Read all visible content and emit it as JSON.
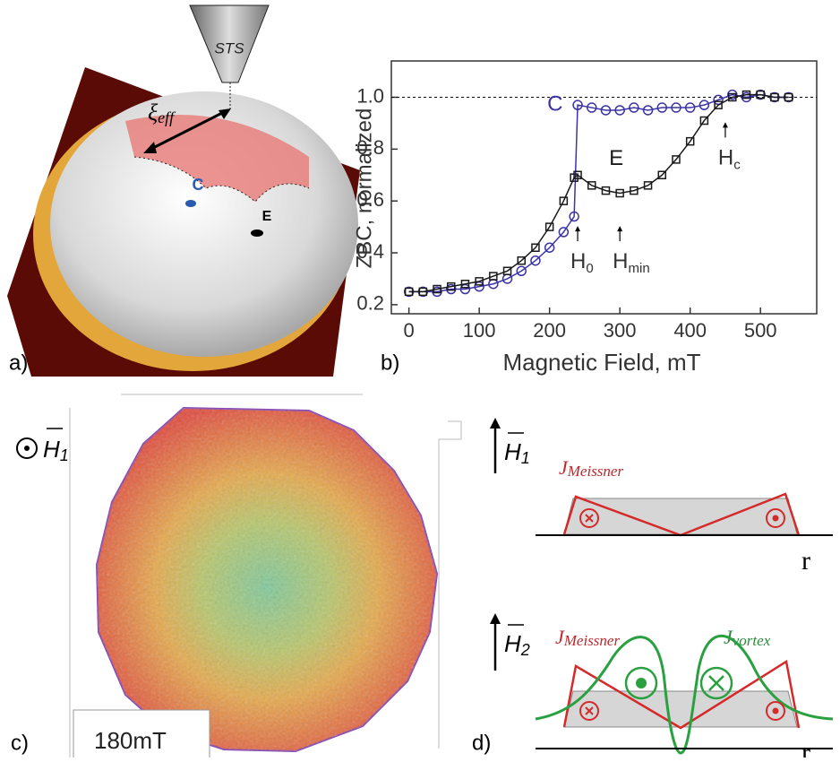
{
  "panel_a": {
    "label": "a)",
    "tip": "STS",
    "xi": "ξ",
    "xi_sub": "eff",
    "point_c": "C",
    "point_e": "E"
  },
  "chart_data": {
    "type": "scatter",
    "panel_label": "b)",
    "x_label": "Magnetic Field, mT",
    "y_label": "ZBC, normalized",
    "xlim": [
      -25,
      580
    ],
    "ylim": [
      0.165,
      1.14
    ],
    "xticks": [
      0,
      100,
      200,
      300,
      400,
      500
    ],
    "yticks": [
      0.2,
      0.4,
      0.6,
      0.8,
      {
        "value": 1,
        "label": "1.0"
      }
    ],
    "reference_line": 1,
    "series": [
      {
        "name": "C",
        "color": "#3b33a6",
        "marker": "circle",
        "x": [
          0,
          20,
          40,
          60,
          80,
          100,
          120,
          140,
          160,
          180,
          200,
          220,
          235,
          240,
          260,
          280,
          300,
          320,
          340,
          360,
          380,
          400,
          420,
          440,
          460,
          480,
          500,
          520,
          540
        ],
        "values": [
          0.25,
          0.25,
          0.25,
          0.26,
          0.26,
          0.27,
          0.28,
          0.3,
          0.33,
          0.37,
          0.42,
          0.48,
          0.54,
          0.97,
          0.96,
          0.95,
          0.95,
          0.96,
          0.95,
          0.96,
          0.96,
          0.96,
          0.97,
          0.99,
          1.01,
          1,
          1.01,
          1,
          1
        ]
      },
      {
        "name": "E",
        "color": "#1a1a1a",
        "marker": "square",
        "x": [
          0,
          20,
          40,
          60,
          80,
          100,
          120,
          140,
          160,
          180,
          200,
          220,
          235,
          240,
          260,
          280,
          300,
          320,
          340,
          360,
          380,
          400,
          420,
          440,
          460,
          480,
          500,
          520,
          540
        ],
        "values": [
          0.25,
          0.25,
          0.26,
          0.27,
          0.28,
          0.29,
          0.31,
          0.33,
          0.37,
          0.42,
          0.5,
          0.6,
          0.69,
          0.7,
          0.66,
          0.64,
          0.63,
          0.64,
          0.66,
          0.7,
          0.76,
          0.83,
          0.91,
          0.97,
          1,
          1.01,
          1.01,
          1,
          1
        ]
      }
    ],
    "annotations": [
      {
        "text": "H",
        "sub": "0",
        "x": 240
      },
      {
        "text": "H",
        "sub": "min",
        "x": 300
      },
      {
        "text": "H",
        "sub": "c",
        "x": 450
      }
    ]
  },
  "panel_c": {
    "label": "c)",
    "field": "H",
    "field_sub": "1",
    "scale_label": "180mT"
  },
  "panel_d": {
    "label": "d)",
    "top": {
      "field": "H",
      "field_sub": "1",
      "current": "J",
      "current_sub": "Meissner",
      "axis": "r"
    },
    "bottom": {
      "field": "H",
      "field_sub": "2",
      "current_meissner": "J",
      "current_meissner_sub": "Meissner",
      "current_vortex": "J",
      "current_vortex_sub": "vortex",
      "axis": "r"
    }
  }
}
